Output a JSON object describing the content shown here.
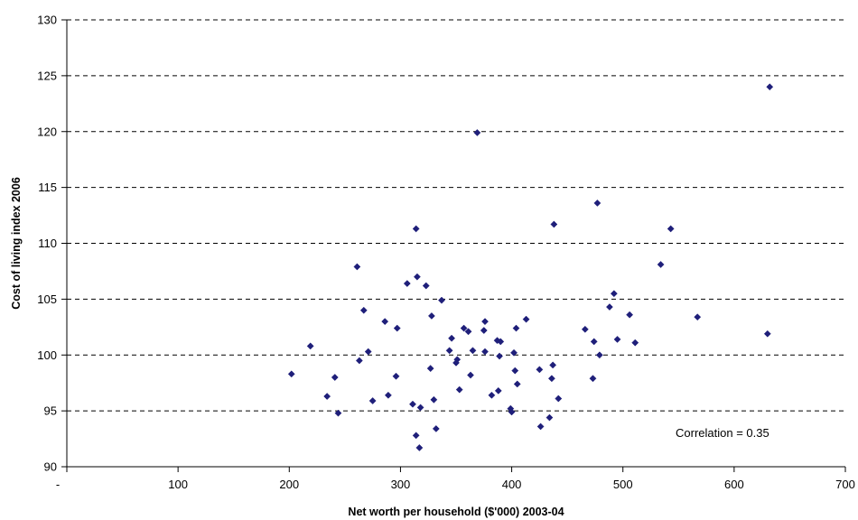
{
  "chart_data": {
    "type": "scatter",
    "title": "",
    "xlabel": "Net worth per household ($'000) 2003-04",
    "ylabel": "Cost of living index 2006",
    "xlim": [
      0,
      700
    ],
    "ylim": [
      90,
      130
    ],
    "x_ticks": [
      "-",
      "100",
      "200",
      "300",
      "400",
      "500",
      "600",
      "700"
    ],
    "y_ticks": [
      "90",
      "95",
      "100",
      "105",
      "110",
      "115",
      "120",
      "125",
      "130"
    ],
    "grid": "horizontal dashed",
    "marker_color": "#1F1F7A",
    "annotation": "Correlation = 0.35",
    "points": [
      [
        202,
        98.3
      ],
      [
        219,
        100.8
      ],
      [
        234,
        96.3
      ],
      [
        241,
        98.0
      ],
      [
        244,
        94.8
      ],
      [
        261,
        107.9
      ],
      [
        263,
        99.5
      ],
      [
        267,
        104.0
      ],
      [
        271,
        100.3
      ],
      [
        275,
        95.9
      ],
      [
        286,
        103.0
      ],
      [
        289,
        96.4
      ],
      [
        296,
        98.1
      ],
      [
        297,
        102.4
      ],
      [
        306,
        106.4
      ],
      [
        311,
        95.6
      ],
      [
        314,
        92.8
      ],
      [
        314,
        111.3
      ],
      [
        315,
        107.0
      ],
      [
        317,
        91.7
      ],
      [
        318,
        95.3
      ],
      [
        323,
        106.2
      ],
      [
        327,
        98.8
      ],
      [
        328,
        103.5
      ],
      [
        330,
        96.0
      ],
      [
        332,
        93.4
      ],
      [
        337,
        104.9
      ],
      [
        344,
        100.4
      ],
      [
        346,
        101.5
      ],
      [
        350,
        99.3
      ],
      [
        351,
        99.6
      ],
      [
        353,
        96.9
      ],
      [
        357,
        102.4
      ],
      [
        361,
        102.1
      ],
      [
        363,
        98.2
      ],
      [
        365,
        100.4
      ],
      [
        369,
        119.9
      ],
      [
        375,
        102.2
      ],
      [
        376,
        103.0
      ],
      [
        376,
        100.3
      ],
      [
        382,
        96.4
      ],
      [
        387,
        101.3
      ],
      [
        388,
        96.8
      ],
      [
        389,
        99.9
      ],
      [
        390,
        101.2
      ],
      [
        399,
        95.2
      ],
      [
        400,
        94.9
      ],
      [
        402,
        100.2
      ],
      [
        403,
        98.6
      ],
      [
        404,
        102.4
      ],
      [
        405,
        97.4
      ],
      [
        413,
        103.2
      ],
      [
        425,
        98.7
      ],
      [
        426,
        93.6
      ],
      [
        434,
        94.4
      ],
      [
        436,
        97.9
      ],
      [
        437,
        99.1
      ],
      [
        438,
        111.7
      ],
      [
        442,
        96.1
      ],
      [
        466,
        102.3
      ],
      [
        473,
        97.9
      ],
      [
        474,
        101.2
      ],
      [
        477,
        113.6
      ],
      [
        479,
        100.0
      ],
      [
        488,
        104.3
      ],
      [
        492,
        105.5
      ],
      [
        495,
        101.4
      ],
      [
        506,
        103.6
      ],
      [
        511,
        101.1
      ],
      [
        534,
        108.1
      ],
      [
        543,
        111.3
      ],
      [
        567,
        103.4
      ],
      [
        630,
        101.9
      ],
      [
        632,
        124.0
      ]
    ]
  }
}
